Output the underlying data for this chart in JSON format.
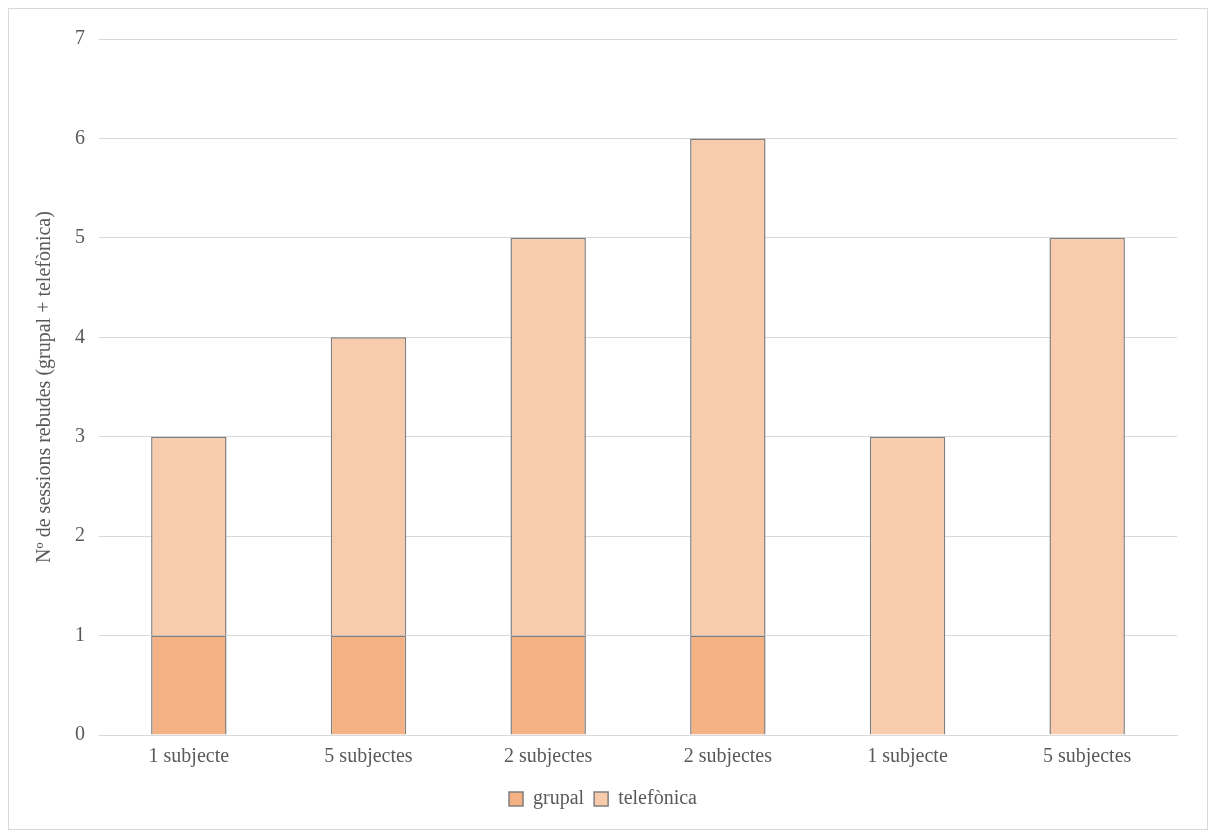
{
  "chart_data": {
    "type": "bar",
    "stacked": true,
    "ylabel": "Nº de sessions rebudes (grupal + telefònica)",
    "categories": [
      "1 subjecte",
      "5 subjectes",
      "2 subjectes",
      "2 subjectes",
      "1 subjecte",
      "5 subjectes"
    ],
    "series": [
      {
        "name": "grupal",
        "color": "#f4b183",
        "values": [
          1,
          1,
          1,
          1,
          0,
          0
        ]
      },
      {
        "name": "telefònica",
        "color": "#f8cbad",
        "values": [
          2,
          3,
          4,
          5,
          3,
          5
        ]
      }
    ],
    "ylim": [
      0,
      7
    ],
    "yticks": [
      0,
      1,
      2,
      3,
      4,
      5,
      6,
      7
    ],
    "grid": "y",
    "legend": "bottom"
  }
}
